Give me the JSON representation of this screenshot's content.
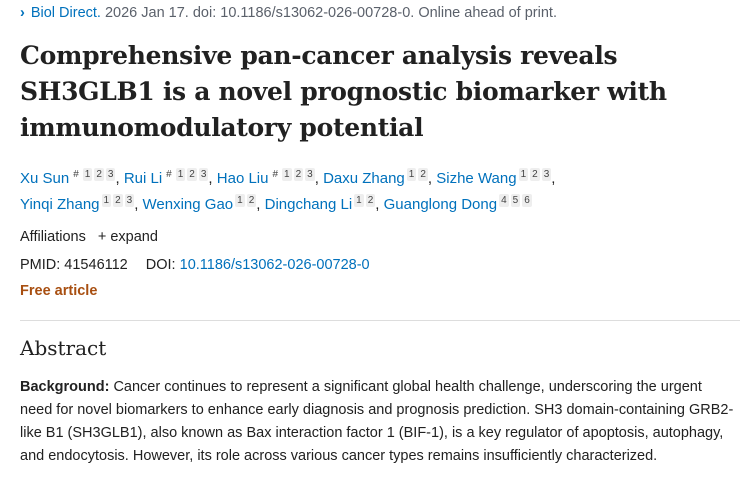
{
  "citation": {
    "journal": "Biol Direct.",
    "rest": " 2026 Jan 17. doi: 10.1186/s13062-026-00728-0. Online ahead of print."
  },
  "title": "Comprehensive pan-cancer analysis reveals SH3GLB1 is a novel prognostic biomarker with immunomodulatory potential",
  "authors": [
    {
      "name": "Xu Sun",
      "equal": "#",
      "affs": [
        "1",
        "2",
        "3"
      ]
    },
    {
      "name": "Rui Li",
      "equal": "#",
      "affs": [
        "1",
        "2",
        "3"
      ]
    },
    {
      "name": "Hao Liu",
      "equal": "#",
      "affs": [
        "1",
        "2",
        "3"
      ]
    },
    {
      "name": "Daxu Zhang",
      "affs": [
        "1",
        "2"
      ]
    },
    {
      "name": "Sizhe Wang",
      "affs": [
        "1",
        "2",
        "3"
      ]
    },
    {
      "name": "Yinqi Zhang",
      "affs": [
        "1",
        "2",
        "3"
      ]
    },
    {
      "name": "Wenxing Gao",
      "affs": [
        "1",
        "2"
      ]
    },
    {
      "name": "Dingchang Li",
      "affs": [
        "1",
        "2"
      ]
    },
    {
      "name": "Guanglong Dong",
      "affs": [
        "4",
        "5",
        "6"
      ]
    }
  ],
  "affiliations": {
    "label": "Affiliations",
    "expand": "+ expand"
  },
  "ids": {
    "pmid_label": "PMID: 41546112",
    "doi_label": "DOI:",
    "doi": "10.1186/s13062-026-00728-0"
  },
  "free_article": "Free article",
  "abstract": {
    "heading": "Abstract",
    "background_label": "Background:",
    "background_text": " Cancer continues to represent a significant global health challenge, underscoring the urgent need for novel biomarkers to enhance early diagnosis and prognosis prediction. SH3 domain-containing GRB2-like B1 (SH3GLB1), also known as Bax interaction factor 1 (BIF-1), is a key regulator of apoptosis, autophagy, and endocytosis. However, its role across various cancer types remains insufficiently characterized."
  }
}
